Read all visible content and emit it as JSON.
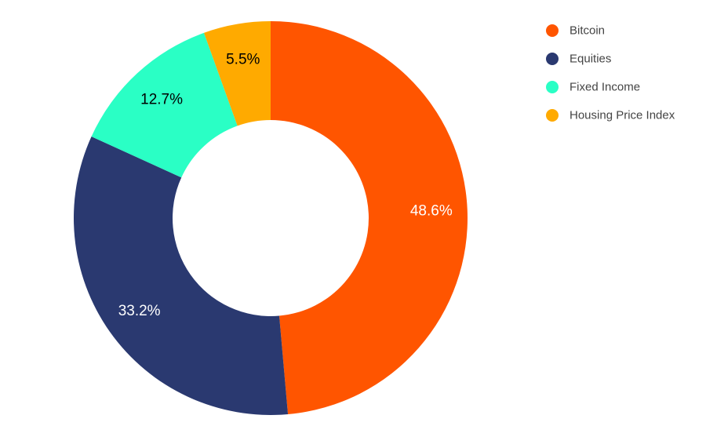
{
  "chart_data": {
    "type": "pie",
    "variant": "donut",
    "title": "",
    "categories": [
      "Bitcoin",
      "Equities",
      "Fixed Income",
      "Housing Price Index"
    ],
    "values": [
      48.6,
      33.2,
      12.7,
      5.5
    ],
    "value_labels": [
      "48.6%",
      "33.2%",
      "12.7%",
      "5.5%"
    ],
    "colors": [
      "#FF5500",
      "#2A3970",
      "#2AFFC5",
      "#FFAA00"
    ],
    "label_colors": [
      "#ffffff",
      "#ffffff",
      "#000000",
      "#000000"
    ],
    "legend": {
      "position": "top-right",
      "items": [
        "Bitcoin",
        "Equities",
        "Fixed Income",
        "Housing Price Index"
      ]
    },
    "start_angle_deg": 0,
    "direction": "clockwise"
  }
}
